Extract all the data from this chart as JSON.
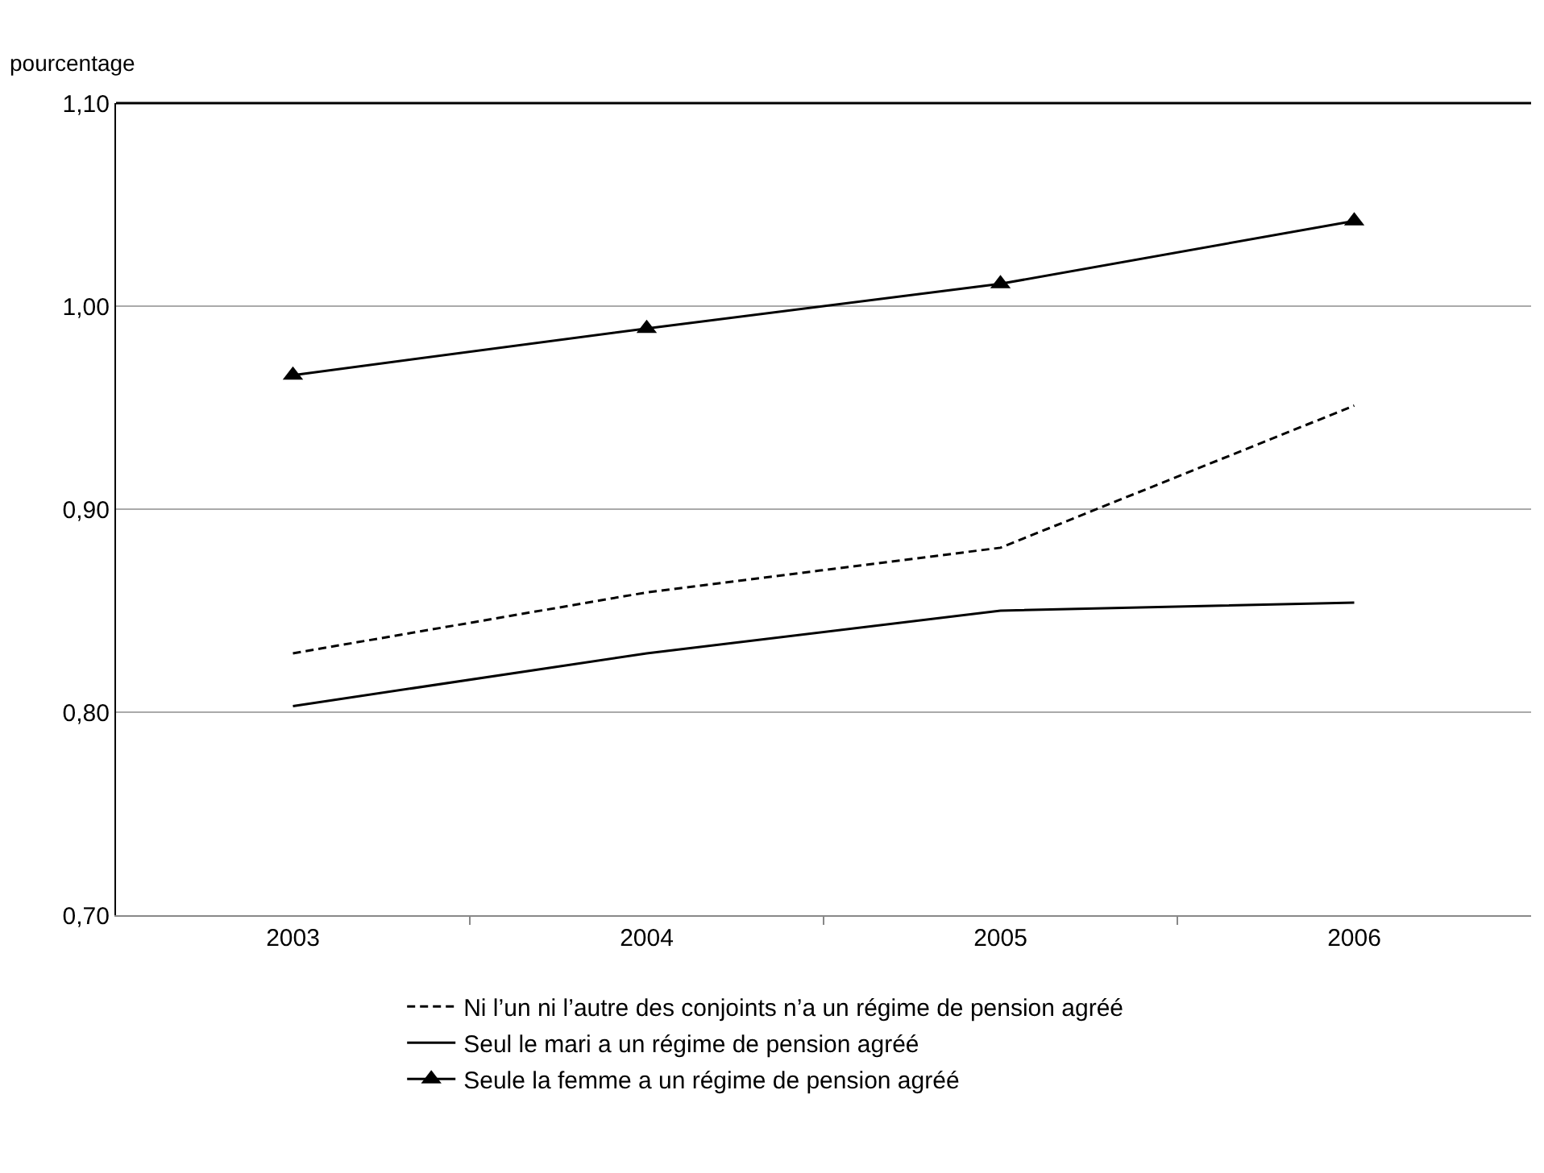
{
  "chart_data": {
    "type": "line",
    "ylabel": "pourcentage",
    "categories": [
      "2003",
      "2004",
      "2005",
      "2006"
    ],
    "series": [
      {
        "name": "Ni l’un ni l’autre des conjoints n’a un régime de pension agréé",
        "color": "#000000",
        "line_style": "dashed",
        "marker": "none",
        "values": [
          0.829,
          0.859,
          0.881,
          0.951
        ]
      },
      {
        "name": "Seul le mari a un régime de pension agréé",
        "color": "#000000",
        "line_style": "solid",
        "marker": "none",
        "values": [
          0.803,
          0.829,
          0.85,
          0.854
        ]
      },
      {
        "name": "Seule la femme a un régime de pension agréé",
        "color": "#000000",
        "line_style": "solid",
        "marker": "triangle",
        "values": [
          0.966,
          0.989,
          1.011,
          1.042
        ]
      }
    ],
    "ylim": [
      0.7,
      1.1
    ],
    "yticks": [
      {
        "value": 0.7,
        "label": "0,70"
      },
      {
        "value": 0.8,
        "label": "0,80"
      },
      {
        "value": 0.9,
        "label": "0,90"
      },
      {
        "value": 1.0,
        "label": "1,00"
      },
      {
        "value": 1.1,
        "label": "1,10"
      }
    ],
    "grid": "y",
    "legend": "bottom"
  }
}
